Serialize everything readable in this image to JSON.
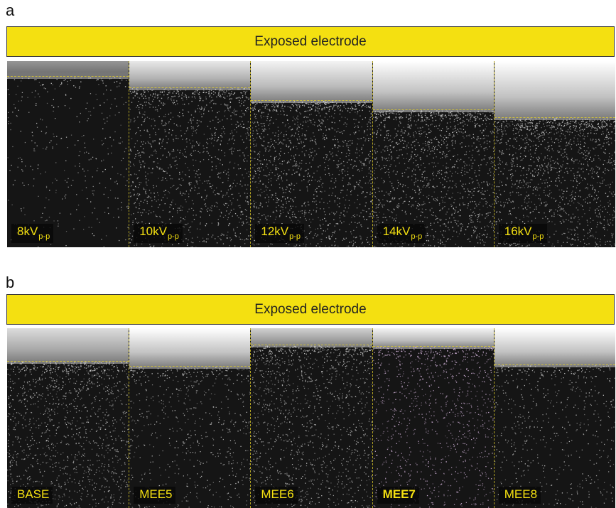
{
  "figure": {
    "panels": [
      {
        "letter": "a",
        "banner": "Exposed electrode",
        "tiles": [
          {
            "label": "8kV",
            "sub": "p-p",
            "front": 0.08,
            "bright": 0.55,
            "density": 0.12,
            "tint": "#cfcfcf"
          },
          {
            "label": "10kV",
            "sub": "p-p",
            "front": 0.14,
            "bright": 0.9,
            "density": 0.45,
            "tint": "#cfcfcf"
          },
          {
            "label": "12kV",
            "sub": "p-p",
            "front": 0.21,
            "bright": 0.95,
            "density": 0.55,
            "tint": "#cfcfcf"
          },
          {
            "label": "14kV",
            "sub": "p-p",
            "front": 0.26,
            "bright": 1.0,
            "density": 0.6,
            "tint": "#cfcfcf"
          },
          {
            "label": "16kV",
            "sub": "p-p",
            "front": 0.3,
            "bright": 1.0,
            "density": 0.62,
            "tint": "#cfcfcf"
          }
        ]
      },
      {
        "letter": "b",
        "banner": "Exposed electrode",
        "tiles": [
          {
            "label": "BASE",
            "sub": "",
            "front": 0.18,
            "bright": 0.85,
            "density": 0.5,
            "tint": "#cfcfcf",
            "bold": false
          },
          {
            "label": "MEE5",
            "sub": "",
            "front": 0.21,
            "bright": 1.0,
            "density": 0.25,
            "tint": "#cfcfcf",
            "bold": false
          },
          {
            "label": "MEE6",
            "sub": "",
            "front": 0.09,
            "bright": 0.8,
            "density": 0.45,
            "tint": "#cfcfcf",
            "bold": false
          },
          {
            "label": "MEE7",
            "sub": "",
            "front": 0.1,
            "bright": 0.95,
            "density": 0.35,
            "tint": "#d8b8e0",
            "bold": true
          },
          {
            "label": "MEE8",
            "sub": "",
            "front": 0.2,
            "bright": 1.0,
            "density": 0.22,
            "tint": "#cfcfcf",
            "bold": false
          }
        ]
      }
    ]
  }
}
